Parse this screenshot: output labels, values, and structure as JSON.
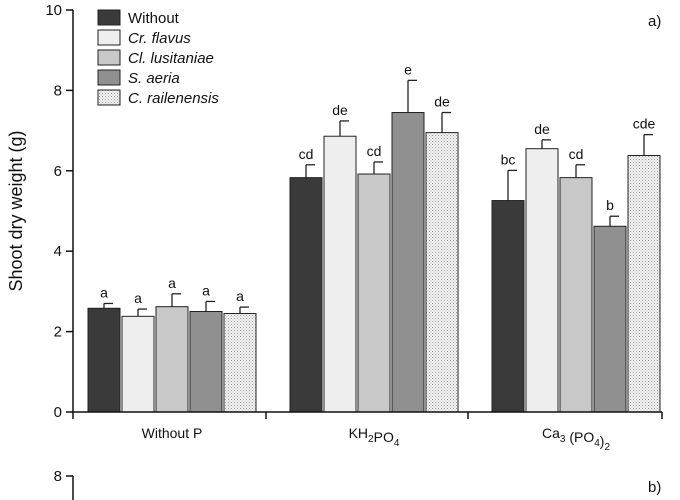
{
  "chart_data": [
    {
      "type": "bar",
      "panel_label": "a)",
      "ylabel": "Shoot dry weight (g)",
      "ylim": [
        0,
        10
      ],
      "yticks": [
        "0",
        "2",
        "4",
        "6",
        "8",
        "10"
      ],
      "categories": [
        {
          "main": "Without P",
          "parts": []
        },
        {
          "main": "",
          "parts": [
            {
              "t": "KH"
            },
            {
              "t": "2",
              "sub": true
            },
            {
              "t": "PO"
            },
            {
              "t": "4",
              "sub": true
            }
          ]
        },
        {
          "main": "",
          "parts": [
            {
              "t": "Ca"
            },
            {
              "t": "3",
              "sub": true
            },
            {
              "t": " (PO"
            },
            {
              "t": "4",
              "sub": true
            },
            {
              "t": ")"
            },
            {
              "t": "2",
              "sub": true
            }
          ]
        }
      ],
      "legend_position": "top-left",
      "grid": false,
      "series": [
        {
          "name": "Without",
          "color": "#3a3a3a",
          "italic": false,
          "values": [
            2.58,
            5.83,
            5.26
          ],
          "errors": [
            0.12,
            0.32,
            0.75
          ],
          "labels": [
            "a",
            "cd",
            "bc"
          ]
        },
        {
          "name": "Cr. flavus",
          "color": "#eeeeee",
          "italic": true,
          "values": [
            2.38,
            6.86,
            6.55
          ],
          "errors": [
            0.18,
            0.38,
            0.22
          ],
          "labels": [
            "a",
            "de",
            "de"
          ]
        },
        {
          "name": "Cl. lusitaniae",
          "color": "#c8c8c8",
          "italic": true,
          "values": [
            2.62,
            5.92,
            5.83
          ],
          "errors": [
            0.32,
            0.3,
            0.32
          ],
          "labels": [
            "a",
            "cd",
            "cd"
          ]
        },
        {
          "name": "S. aeria",
          "color": "#909090",
          "italic": true,
          "values": [
            2.5,
            7.45,
            4.62
          ],
          "errors": [
            0.25,
            0.8,
            0.25
          ],
          "labels": [
            "a",
            "e",
            "b"
          ]
        },
        {
          "name": "C. railenensis",
          "color": "#f4f4f4",
          "italic": true,
          "pattern": true,
          "values": [
            2.45,
            6.95,
            6.38
          ],
          "errors": [
            0.16,
            0.5,
            0.52
          ],
          "labels": [
            "a",
            "de",
            "cde"
          ]
        }
      ]
    },
    {
      "type": "bar",
      "panel_label": "b)",
      "ylim": [
        0,
        8
      ],
      "yticks": [
        "8"
      ]
    }
  ]
}
